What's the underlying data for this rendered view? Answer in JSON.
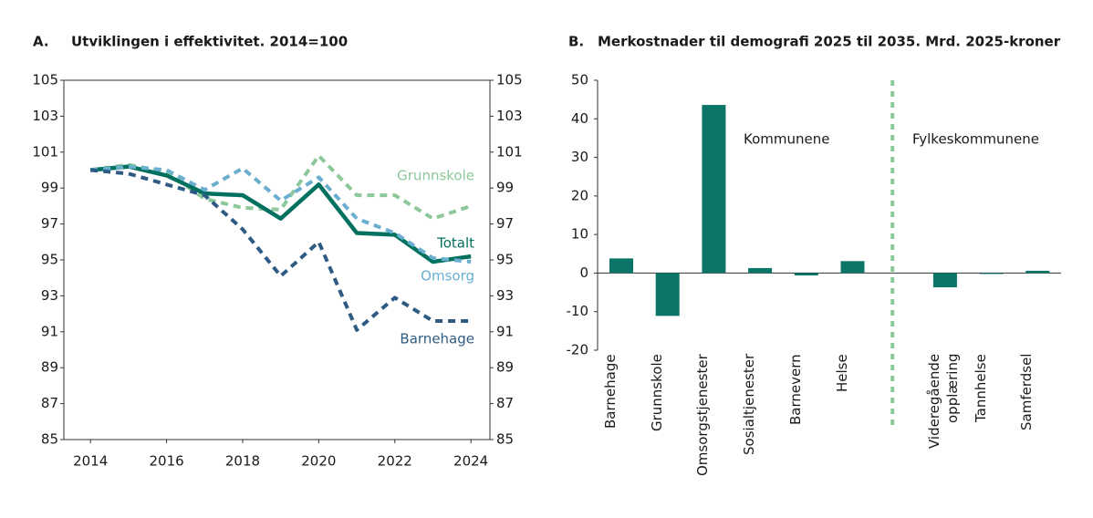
{
  "chart_data": [
    {
      "type": "line",
      "panel": "A.",
      "title": "Utviklingen i effektivitet. 2014=100",
      "x": [
        2014,
        2015,
        2016,
        2017,
        2018,
        2019,
        2020,
        2021,
        2022,
        2023,
        2024
      ],
      "xlim": [
        2013.3,
        2024.5
      ],
      "xticks": [
        2014,
        2016,
        2018,
        2020,
        2022,
        2024
      ],
      "ylim": [
        85,
        105
      ],
      "yticks": [
        85,
        87,
        89,
        91,
        93,
        95,
        97,
        99,
        101,
        103,
        105
      ],
      "y2lim": [
        85,
        105
      ],
      "y2ticks": [
        85,
        87,
        89,
        91,
        93,
        95,
        97,
        99,
        101,
        103,
        105
      ],
      "series": [
        {
          "name": "Grunnskole",
          "color": "#8dc89b",
          "dashed": true,
          "values": [
            100,
            100.3,
            99.9,
            98.4,
            97.9,
            97.8,
            100.8,
            98.6,
            98.6,
            97.3,
            98.0
          ]
        },
        {
          "name": "Totalt",
          "color": "#00705f",
          "dashed": false,
          "values": [
            100,
            100.2,
            99.7,
            98.7,
            98.6,
            97.3,
            99.2,
            96.5,
            96.4,
            94.9,
            95.2
          ]
        },
        {
          "name": "Omsorg",
          "color": "#6aaed0",
          "dashed": true,
          "values": [
            100,
            100.2,
            100.0,
            98.9,
            100.1,
            98.3,
            99.6,
            97.3,
            96.5,
            95.1,
            94.9
          ]
        },
        {
          "name": "Barnehage",
          "color": "#2e5b83",
          "dashed": true,
          "values": [
            100,
            99.8,
            99.2,
            98.6,
            96.7,
            94.1,
            96.0,
            91.1,
            92.9,
            91.6,
            91.6
          ]
        }
      ]
    },
    {
      "type": "bar",
      "panel": "B.",
      "title": "Merkostnader til demografi 2025 til 2035. Mrd. 2025-kroner",
      "ylim": [
        -20,
        50
      ],
      "yticks": [
        -20,
        -10,
        0,
        10,
        20,
        30,
        40,
        50
      ],
      "color": "#0b7568",
      "divider_color": "#8dc89b",
      "groups": [
        {
          "label": "Kommunene",
          "categories": [
            "Barnehage",
            "Grunnskole",
            "Omsorgstjenester",
            "Sosialtjenester",
            "Barnevern",
            "Helse"
          ],
          "values": [
            3.8,
            -11.1,
            43.6,
            1.3,
            -0.6,
            3.1
          ]
        },
        {
          "label": "Fylkeskommunene",
          "categories": [
            "Videregående opplæring",
            "Tannhelse",
            "Samferdsel"
          ],
          "values": [
            -3.7,
            -0.2,
            0.6
          ]
        }
      ]
    }
  ]
}
